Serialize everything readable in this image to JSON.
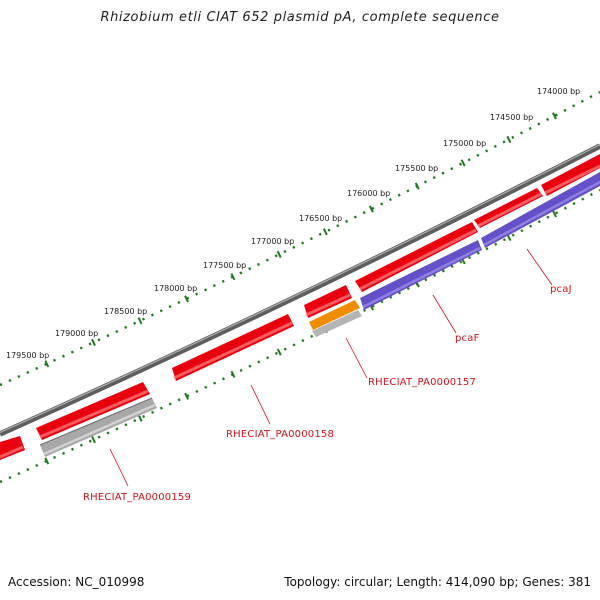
{
  "title": "Rhizobium etli CIAT 652 plasmid pA, complete sequence",
  "footer": {
    "accession": "Accession: NC_010998",
    "summary": "Topology: circular; Length: 414,090 bp; Genes: 381"
  },
  "scale_ticks": [
    {
      "label": "174000 bp"
    },
    {
      "label": "174500 bp"
    },
    {
      "label": "175000 bp"
    },
    {
      "label": "175500 bp"
    },
    {
      "label": "176000 bp"
    },
    {
      "label": "176500 bp"
    },
    {
      "label": "177000 bp"
    },
    {
      "label": "177500 bp"
    },
    {
      "label": "178000 bp"
    },
    {
      "label": "178500 bp"
    },
    {
      "label": "179000 bp"
    },
    {
      "label": "179500 bp"
    }
  ],
  "gene_labels": [
    {
      "label": "pcaJ"
    },
    {
      "label": "pcaF"
    },
    {
      "label": "RHECIAT_PA0000157"
    },
    {
      "label": "RHECIAT_PA0000158"
    },
    {
      "label": "RHECIAT_PA0000159"
    }
  ],
  "colors": {
    "forward_feature": "#e8000f",
    "forward_feature_light": "#ff6a6a",
    "gene_blue": "#6450c8",
    "gene_orange": "#f08c00",
    "gene_gray": "#a8a8a8",
    "backbone": "#7a7a7a",
    "tick_green": "#1e7a1e",
    "label_red": "#c8141e"
  }
}
